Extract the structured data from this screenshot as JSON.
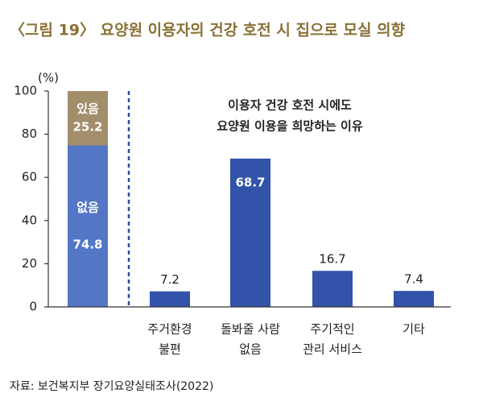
{
  "chart_data": {
    "type": "bar",
    "title": "〈그림 19〉 요양원 이용자의 건강 호전 시 집으로 모실 의향",
    "y_unit": "(%)",
    "ylim": [
      0,
      100
    ],
    "yticks": [
      0,
      20,
      40,
      60,
      80,
      100
    ],
    "stacked_bar": {
      "series": [
        {
          "name": "없음",
          "color": "#5377c6",
          "value": 74.8
        },
        {
          "name": "있음",
          "color": "#a38e6c",
          "value": 25.2
        }
      ]
    },
    "annotation": [
      "이용자 건강 호전 시에도",
      "요양원 이용을 희망하는 이유"
    ],
    "categories": [
      [
        "주거환경",
        "불편"
      ],
      [
        "돌봐줄 사람",
        "없음"
      ],
      [
        "주기적인",
        "관리 서비스"
      ],
      [
        "기타"
      ]
    ],
    "values": [
      7.2,
      68.7,
      16.7,
      7.4
    ],
    "color": "#3253a9",
    "source": "자료: 보건복지부 장기요양실태조사(2022)"
  }
}
